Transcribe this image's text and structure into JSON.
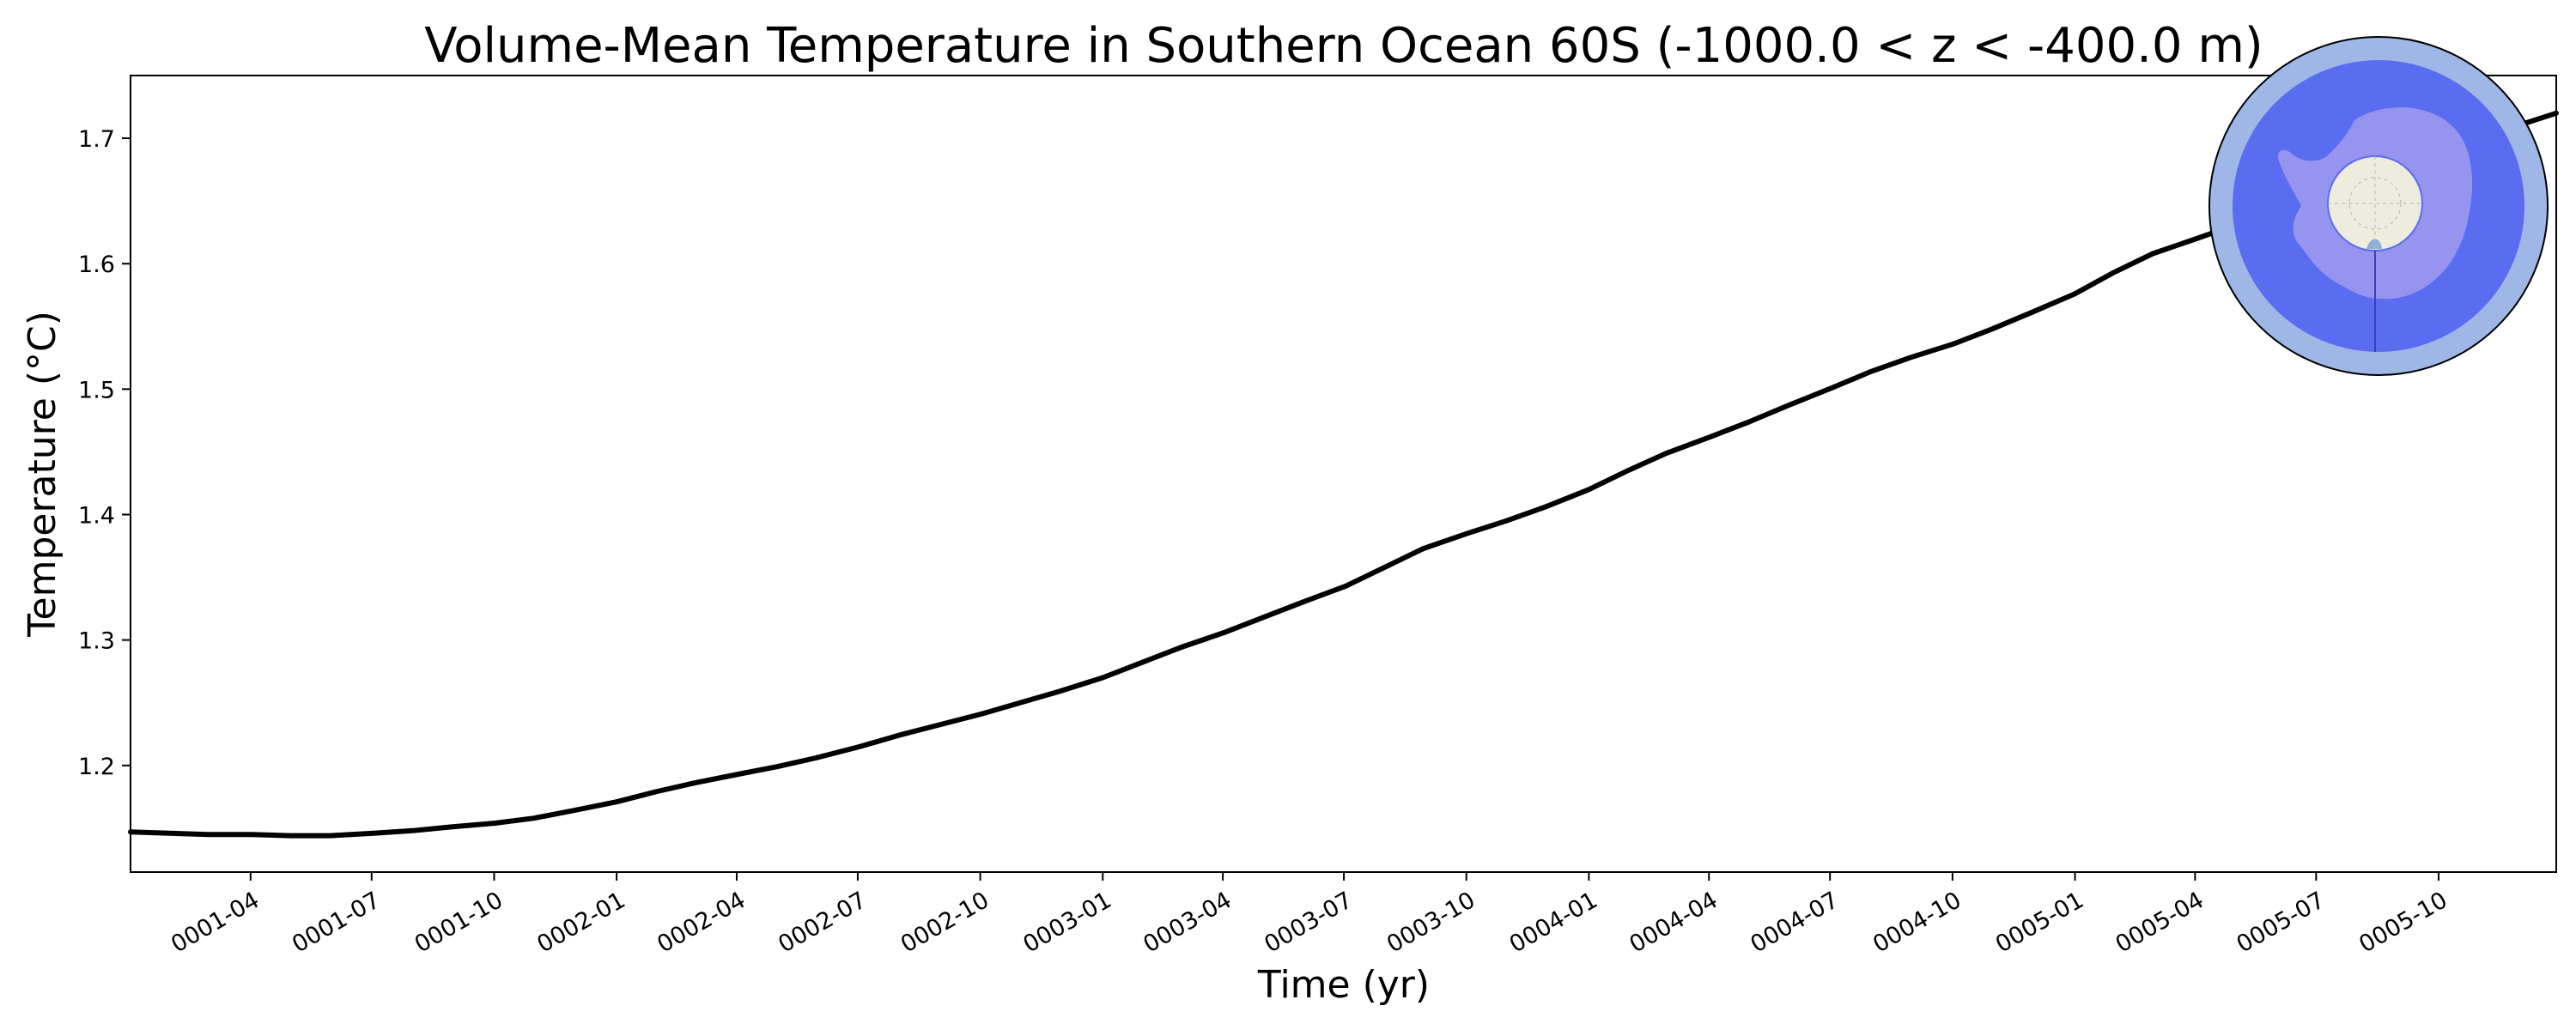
{
  "chart_data": {
    "type": "line",
    "title": "Volume-Mean Temperature in Southern Ocean 60S (-1000.0 < z < -400.0 m)",
    "xlabel": "Time (yr)",
    "ylabel": "Temperature (°C)",
    "xlim": [
      1.0,
      5.99
    ],
    "ylim": [
      1.115,
      1.75
    ],
    "grid": false,
    "x_ticks": [
      {
        "label": "0001-04",
        "value": 1.247
      },
      {
        "label": "0001-07",
        "value": 1.496
      },
      {
        "label": "0001-10",
        "value": 1.748
      },
      {
        "label": "0002-01",
        "value": 2.0
      },
      {
        "label": "0002-04",
        "value": 2.247
      },
      {
        "label": "0002-07",
        "value": 2.496
      },
      {
        "label": "0002-10",
        "value": 2.748
      },
      {
        "label": "0003-01",
        "value": 3.0
      },
      {
        "label": "0003-04",
        "value": 3.247
      },
      {
        "label": "0003-07",
        "value": 3.496
      },
      {
        "label": "0003-10",
        "value": 3.748
      },
      {
        "label": "0004-01",
        "value": 4.0
      },
      {
        "label": "0004-04",
        "value": 4.247
      },
      {
        "label": "0004-07",
        "value": 4.496
      },
      {
        "label": "0004-10",
        "value": 4.748
      },
      {
        "label": "0005-01",
        "value": 5.0
      },
      {
        "label": "0005-04",
        "value": 5.247
      },
      {
        "label": "0005-07",
        "value": 5.496
      },
      {
        "label": "0005-10",
        "value": 5.748
      }
    ],
    "y_ticks": [
      {
        "label": "1.2",
        "value": 1.2
      },
      {
        "label": "1.3",
        "value": 1.3
      },
      {
        "label": "1.4",
        "value": 1.4
      },
      {
        "label": "1.5",
        "value": 1.5
      },
      {
        "label": "1.6",
        "value": 1.6
      },
      {
        "label": "1.7",
        "value": 1.7
      }
    ],
    "series": [
      {
        "color": "#000000",
        "x": [
          1.0,
          1.08,
          1.16,
          1.25,
          1.33,
          1.41,
          1.5,
          1.58,
          1.66,
          1.75,
          1.83,
          1.91,
          2.0,
          2.08,
          2.16,
          2.25,
          2.33,
          2.41,
          2.5,
          2.58,
          2.66,
          2.75,
          2.83,
          2.91,
          3.0,
          3.08,
          3.16,
          3.25,
          3.33,
          3.41,
          3.5,
          3.58,
          3.66,
          3.75,
          3.83,
          3.91,
          4.0,
          4.08,
          4.16,
          4.25,
          4.33,
          4.41,
          4.5,
          4.58,
          4.66,
          4.75,
          4.83,
          4.91,
          5.0,
          5.08,
          5.16,
          5.25,
          5.33,
          5.41,
          5.5,
          5.58,
          5.66,
          5.75,
          5.83,
          5.91,
          5.99
        ],
        "y": [
          1.147,
          1.146,
          1.145,
          1.145,
          1.144,
          1.144,
          1.146,
          1.148,
          1.151,
          1.154,
          1.158,
          1.164,
          1.171,
          1.179,
          1.186,
          1.193,
          1.199,
          1.206,
          1.215,
          1.224,
          1.232,
          1.241,
          1.25,
          1.259,
          1.27,
          1.282,
          1.294,
          1.306,
          1.318,
          1.33,
          1.343,
          1.358,
          1.373,
          1.385,
          1.395,
          1.406,
          1.42,
          1.435,
          1.449,
          1.462,
          1.474,
          1.487,
          1.501,
          1.514,
          1.525,
          1.536,
          1.548,
          1.561,
          1.576,
          1.593,
          1.608,
          1.62,
          1.631,
          1.643,
          1.656,
          1.668,
          1.679,
          1.69,
          1.7,
          1.71,
          1.72
        ]
      }
    ]
  },
  "inset_map": {
    "ocean_color": "#5a6cf0",
    "land_color": "#9b97ef",
    "ring_color": "#9fb7e6",
    "pole_color": "#eeecdc",
    "icon": "antarctica-region-map"
  }
}
